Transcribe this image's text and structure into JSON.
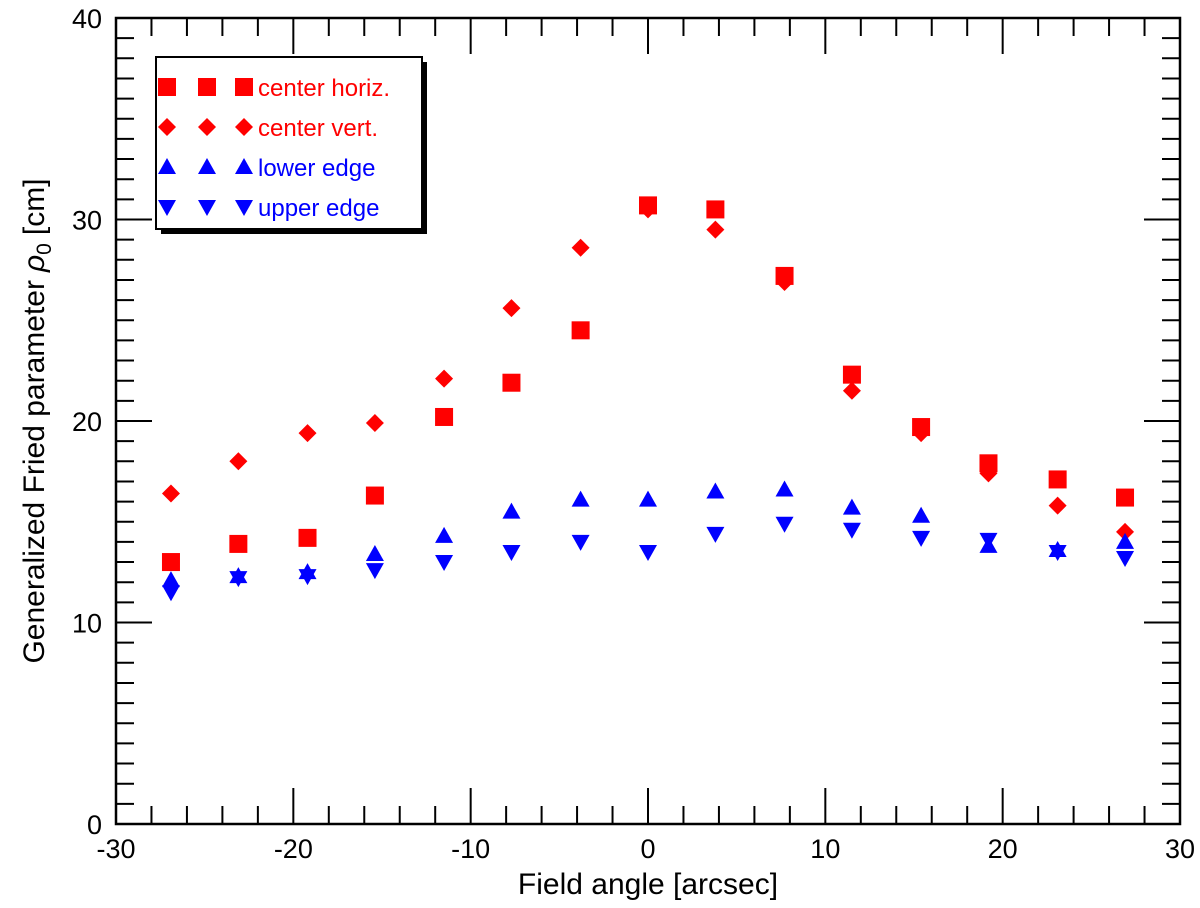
{
  "chart_data": {
    "type": "scatter",
    "xlabel": "Field angle [arcsec]",
    "ylabel_main": "Generalized Fried parameter",
    "ylabel_symbol": "ρ",
    "ylabel_subscript": "0",
    "ylabel_unit": "[cm]",
    "xlim": [
      -30,
      30
    ],
    "ylim": [
      0,
      40
    ],
    "x_ticks": [
      -30,
      -20,
      -10,
      0,
      10,
      20,
      30
    ],
    "x_tick_labels": [
      "-30",
      "-20",
      "-10",
      "0",
      "10",
      "20",
      "30"
    ],
    "y_ticks": [
      0,
      10,
      20,
      30,
      40
    ],
    "y_tick_labels": [
      "0",
      "10",
      "20",
      "30",
      "40"
    ],
    "x_minor_step": 2,
    "y_minor_step": 1,
    "legend_position": "top-left",
    "x": [
      -26.9,
      -23.1,
      -19.2,
      -15.4,
      -11.5,
      -7.7,
      -3.8,
      0,
      3.8,
      7.7,
      11.5,
      15.4,
      19.2,
      23.1,
      26.9
    ],
    "series": [
      {
        "name": "center horiz.",
        "marker": "square",
        "color": "#ff0000",
        "values": [
          13.0,
          13.9,
          14.2,
          16.3,
          20.2,
          21.9,
          24.5,
          30.7,
          30.5,
          27.2,
          22.3,
          19.7,
          17.9,
          17.1,
          16.2
        ]
      },
      {
        "name": "center vert.",
        "marker": "diamond",
        "color": "#ff0000",
        "values": [
          16.4,
          18.0,
          19.4,
          19.9,
          22.1,
          25.6,
          28.6,
          30.5,
          29.5,
          26.9,
          21.5,
          19.4,
          17.4,
          15.8,
          14.5
        ]
      },
      {
        "name": "lower edge",
        "marker": "triangle-up",
        "color": "#0000ff",
        "values": [
          12.1,
          12.3,
          12.5,
          13.4,
          14.3,
          15.5,
          16.1,
          16.1,
          16.5,
          16.6,
          15.7,
          15.3,
          13.8,
          13.6,
          14.0
        ]
      },
      {
        "name": "upper edge",
        "marker": "triangle-down",
        "color": "#0000ff",
        "values": [
          11.5,
          12.2,
          12.3,
          12.6,
          13.0,
          13.5,
          14.0,
          13.5,
          14.4,
          14.9,
          14.6,
          14.2,
          14.1,
          13.5,
          13.2
        ]
      }
    ]
  }
}
